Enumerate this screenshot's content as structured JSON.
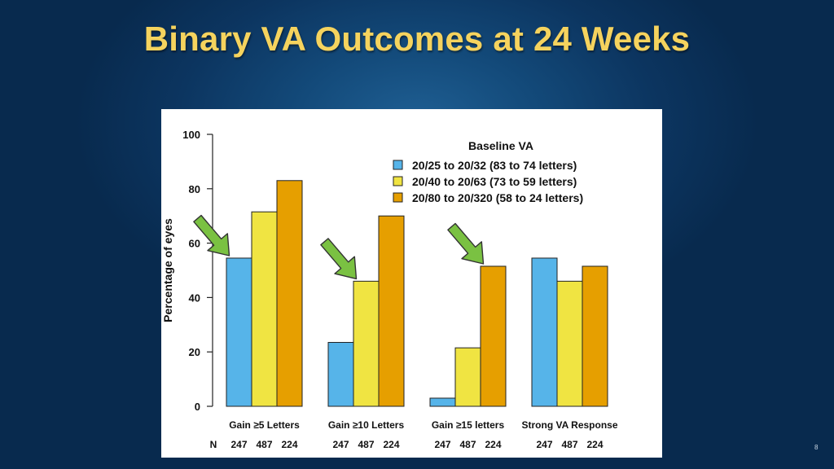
{
  "slide": {
    "title": "Binary VA Outcomes at 24 Weeks",
    "page_number": "8"
  },
  "colors": {
    "title": "#f5d35e",
    "series": [
      "#56b4e9",
      "#f0e442",
      "#e69f00"
    ],
    "arrow": "#7ac142"
  },
  "chart_data": {
    "type": "bar",
    "ylabel": "Percentage of eyes",
    "xlabel": "",
    "ylim": [
      0,
      100
    ],
    "yticks": [
      0,
      20,
      40,
      60,
      80,
      100
    ],
    "grid": false,
    "legend": {
      "title": "Baseline VA",
      "position": "top-right"
    },
    "categories": [
      "Gain ≥5 Letters",
      "Gain ≥10 Letters",
      "Gain ≥15 letters",
      "Strong VA Response"
    ],
    "series": [
      {
        "name": "20/25 to 20/32 (83 to 74 letters)",
        "values": [
          54.5,
          23.5,
          3,
          54.5
        ],
        "n": "247"
      },
      {
        "name": "20/40 to 20/63 (73 to 59 letters)",
        "values": [
          71.5,
          46,
          21.5,
          46
        ],
        "n": "487"
      },
      {
        "name": "20/80 to 20/320 (58 to 24 letters)",
        "values": [
          83,
          70,
          51.5,
          51.5
        ],
        "n": "224"
      }
    ],
    "n_label": "N",
    "annotations": [
      {
        "type": "arrow",
        "category_index": 0,
        "points_to_series": 0
      },
      {
        "type": "arrow",
        "category_index": 1,
        "points_to_series": 1
      },
      {
        "type": "arrow",
        "category_index": 2,
        "points_to_series": 2
      }
    ]
  }
}
